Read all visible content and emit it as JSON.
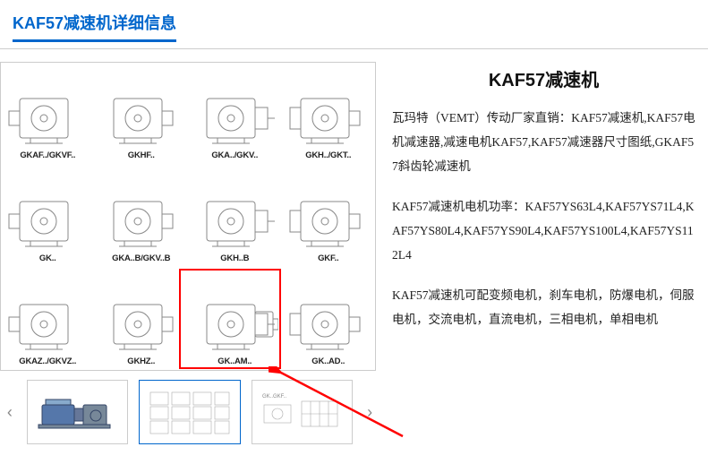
{
  "page": {
    "title": "KAF57减速机详细信息",
    "title_color": "#0066cc"
  },
  "product": {
    "title": "KAF57减速机"
  },
  "description": {
    "p1": "瓦玛特（VEMT）传动厂家直销：KAF57减速机,KAF57电机减速器,减速电机KAF57,KAF57减速器尺寸图纸,GKAF57斜齿轮减速机",
    "p2": "KAF57减速机电机功率：KAF57YS63L4,KAF57YS71L4,KAF57YS80L4,KAF57YS90L4,KAF57YS100L4,KAF57YS112L4",
    "p3": "KAF57减速机可配变频电机，刹车电机，防爆电机，伺服电机，交流电机，直流电机，三相电机，单相电机"
  },
  "grid": {
    "highlight_index": 10,
    "highlight_color": "#ff0000",
    "arrow_color": "#ff0000",
    "cells": [
      {
        "label": "GKAF../GKVF.."
      },
      {
        "label": "GKHF.."
      },
      {
        "label": "GKA../GKV.."
      },
      {
        "label": "GKH../GKT.."
      },
      {
        "label": "GK.."
      },
      {
        "label": "GKA..B/GKV..B"
      },
      {
        "label": "GKH..B"
      },
      {
        "label": "GKF.."
      },
      {
        "label": "GKAZ../GKVZ.."
      },
      {
        "label": "GKHZ.."
      },
      {
        "label": "GK..AM.."
      },
      {
        "label": "GK..AD.."
      }
    ]
  },
  "thumbs": {
    "prev": "‹",
    "next": "›",
    "items": [
      {
        "kind": "motor"
      },
      {
        "kind": "grid"
      },
      {
        "kind": "tech"
      }
    ]
  },
  "style": {
    "border_color": "#cccccc",
    "text_color": "#222222"
  }
}
